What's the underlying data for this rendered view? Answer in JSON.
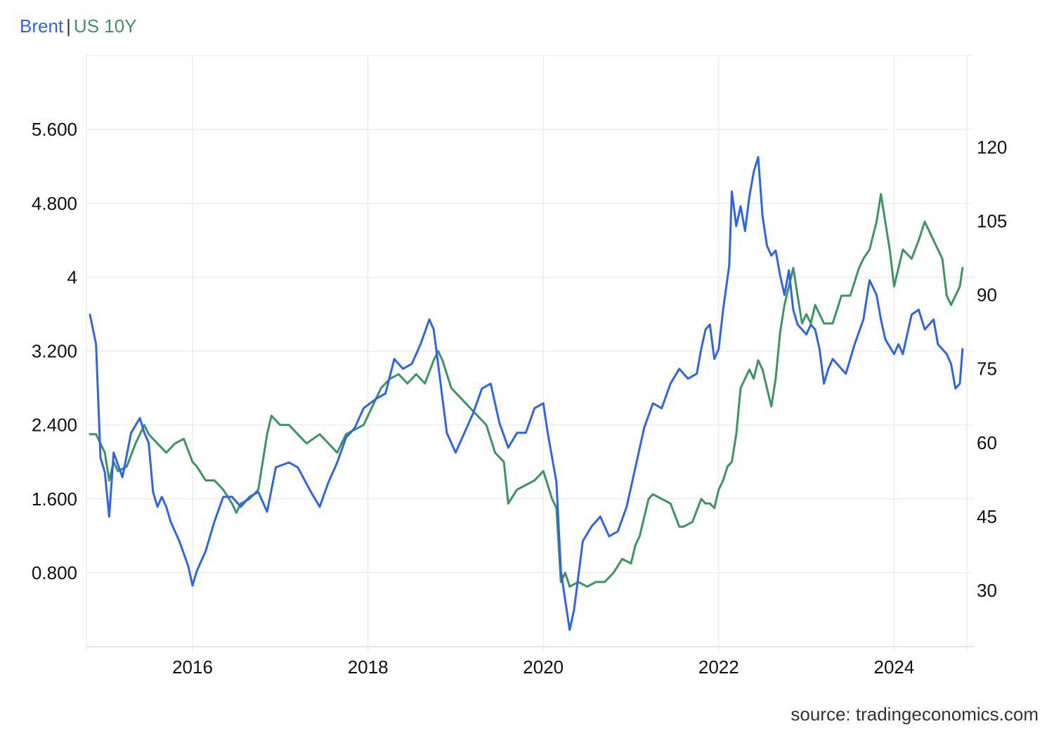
{
  "legend": {
    "series_a": "Brent",
    "separator": "|",
    "series_b": "US 10Y"
  },
  "source": "source: tradingeconomics.com",
  "colors": {
    "brent": "#2f63e8",
    "us10y": "#3d9460",
    "grid": "#e6e6e6"
  },
  "chart_data": {
    "type": "line",
    "grid": true,
    "legend_position": "top-left",
    "x_ticks": [
      "2016",
      "2018",
      "2020",
      "2022",
      "2024"
    ],
    "x_range": [
      2014.79,
      2024.83
    ],
    "left_axis": {
      "series": "US 10Y",
      "ticks": [
        "0.800",
        "1.600",
        "2.400",
        "3.200",
        "4",
        "4.800",
        "5.600"
      ],
      "range": [
        0.0,
        6.4
      ]
    },
    "right_axis": {
      "series": "Brent",
      "ticks": [
        "30",
        "45",
        "60",
        "75",
        "90",
        "105",
        "120"
      ],
      "range": [
        18.6,
        138.6
      ]
    },
    "series": [
      {
        "name": "Brent",
        "axis": "right",
        "color": "#2f63e8",
        "x": [
          2014.83,
          2014.9,
          2014.95,
          2015.0,
          2015.05,
          2015.1,
          2015.2,
          2015.3,
          2015.4,
          2015.45,
          2015.5,
          2015.55,
          2015.6,
          2015.65,
          2015.7,
          2015.75,
          2015.85,
          2015.95,
          2016.0,
          2016.05,
          2016.15,
          2016.25,
          2016.35,
          2016.45,
          2016.55,
          2016.65,
          2016.75,
          2016.85,
          2016.95,
          2017.1,
          2017.2,
          2017.35,
          2017.45,
          2017.55,
          2017.65,
          2017.75,
          2017.85,
          2017.95,
          2018.1,
          2018.2,
          2018.3,
          2018.4,
          2018.5,
          2018.55,
          2018.6,
          2018.7,
          2018.75,
          2018.8,
          2018.9,
          2018.95,
          2019.0,
          2019.1,
          2019.2,
          2019.3,
          2019.4,
          2019.5,
          2019.6,
          2019.7,
          2019.8,
          2019.9,
          2020.0,
          2020.05,
          2020.1,
          2020.15,
          2020.2,
          2020.25,
          2020.3,
          2020.35,
          2020.45,
          2020.55,
          2020.65,
          2020.75,
          2020.85,
          2020.95,
          2021.05,
          2021.15,
          2021.25,
          2021.35,
          2021.45,
          2021.55,
          2021.65,
          2021.75,
          2021.8,
          2021.85,
          2021.9,
          2021.95,
          2022.0,
          2022.05,
          2022.12,
          2022.15,
          2022.2,
          2022.25,
          2022.3,
          2022.35,
          2022.4,
          2022.45,
          2022.5,
          2022.55,
          2022.6,
          2022.65,
          2022.7,
          2022.75,
          2022.8,
          2022.85,
          2022.9,
          2023.0,
          2023.05,
          2023.1,
          2023.15,
          2023.2,
          2023.25,
          2023.3,
          2023.35,
          2023.4,
          2023.45,
          2023.55,
          2023.65,
          2023.72,
          2023.8,
          2023.85,
          2023.9,
          2024.0,
          2024.05,
          2024.1,
          2024.2,
          2024.28,
          2024.35,
          2024.45,
          2024.5,
          2024.55,
          2024.6,
          2024.65,
          2024.7,
          2024.75,
          2024.78
        ],
        "values": [
          86,
          80,
          57,
          54,
          45,
          58,
          53,
          62,
          65,
          62,
          60,
          50,
          47,
          49,
          47,
          44,
          40,
          35,
          31,
          34,
          38,
          44,
          49,
          49,
          47,
          49,
          50,
          46,
          55,
          56,
          55,
          50,
          47,
          52,
          56,
          61,
          63,
          67,
          69,
          70,
          77,
          75,
          76,
          78,
          80,
          85,
          83,
          76,
          62,
          60,
          58,
          62,
          66,
          71,
          72,
          64,
          59,
          62,
          62,
          67,
          68,
          62,
          57,
          52,
          34,
          28,
          22,
          26,
          40,
          43,
          45,
          41,
          42,
          47,
          55,
          63,
          68,
          67,
          72,
          75,
          73,
          74,
          79,
          83,
          84,
          77,
          79,
          87,
          96,
          111,
          104,
          108,
          103,
          110,
          115,
          118,
          106,
          100,
          98,
          99,
          94,
          90,
          95,
          87,
          84,
          82,
          84,
          83,
          79,
          72,
          75,
          77,
          76,
          75,
          74,
          80,
          85,
          93,
          90,
          85,
          81,
          78,
          80,
          78,
          86,
          87,
          83,
          85,
          80,
          79,
          78,
          76,
          71,
          72,
          79
        ]
      },
      {
        "name": "US 10Y",
        "axis": "left",
        "color": "#3d9460",
        "x": [
          2014.83,
          2014.9,
          2015.0,
          2015.05,
          2015.1,
          2015.15,
          2015.25,
          2015.35,
          2015.45,
          2015.5,
          2015.6,
          2015.7,
          2015.8,
          2015.9,
          2016.0,
          2016.05,
          2016.15,
          2016.25,
          2016.35,
          2016.45,
          2016.5,
          2016.55,
          2016.65,
          2016.75,
          2016.85,
          2016.9,
          2017.0,
          2017.1,
          2017.2,
          2017.3,
          2017.45,
          2017.55,
          2017.65,
          2017.75,
          2017.85,
          2017.95,
          2018.05,
          2018.15,
          2018.25,
          2018.35,
          2018.45,
          2018.55,
          2018.65,
          2018.75,
          2018.8,
          2018.85,
          2018.95,
          2019.05,
          2019.15,
          2019.25,
          2019.35,
          2019.45,
          2019.55,
          2019.6,
          2019.7,
          2019.8,
          2019.9,
          2020.0,
          2020.05,
          2020.1,
          2020.15,
          2020.2,
          2020.25,
          2020.3,
          2020.4,
          2020.5,
          2020.6,
          2020.7,
          2020.8,
          2020.9,
          2021.0,
          2021.05,
          2021.1,
          2021.15,
          2021.2,
          2021.25,
          2021.35,
          2021.45,
          2021.55,
          2021.6,
          2021.7,
          2021.8,
          2021.85,
          2021.9,
          2021.95,
          2022.0,
          2022.05,
          2022.1,
          2022.15,
          2022.2,
          2022.25,
          2022.3,
          2022.35,
          2022.4,
          2022.45,
          2022.5,
          2022.55,
          2022.6,
          2022.65,
          2022.7,
          2022.75,
          2022.8,
          2022.85,
          2022.9,
          2022.95,
          2023.0,
          2023.05,
          2023.1,
          2023.15,
          2023.2,
          2023.25,
          2023.3,
          2023.4,
          2023.5,
          2023.6,
          2023.65,
          2023.72,
          2023.8,
          2023.85,
          2023.9,
          2023.95,
          2024.0,
          2024.05,
          2024.1,
          2024.2,
          2024.28,
          2024.35,
          2024.4,
          2024.45,
          2024.5,
          2024.55,
          2024.6,
          2024.65,
          2024.7,
          2024.75,
          2024.78
        ],
        "values": [
          2.3,
          2.3,
          2.1,
          1.8,
          2.0,
          1.9,
          1.95,
          2.2,
          2.4,
          2.3,
          2.2,
          2.1,
          2.2,
          2.25,
          2.0,
          1.95,
          1.8,
          1.8,
          1.7,
          1.55,
          1.45,
          1.55,
          1.6,
          1.7,
          2.3,
          2.5,
          2.4,
          2.4,
          2.3,
          2.2,
          2.3,
          2.2,
          2.1,
          2.3,
          2.35,
          2.4,
          2.6,
          2.8,
          2.9,
          2.95,
          2.85,
          2.95,
          2.85,
          3.1,
          3.2,
          3.1,
          2.8,
          2.7,
          2.6,
          2.5,
          2.4,
          2.1,
          2.0,
          1.55,
          1.7,
          1.75,
          1.8,
          1.9,
          1.75,
          1.6,
          1.5,
          0.7,
          0.8,
          0.65,
          0.7,
          0.65,
          0.7,
          0.7,
          0.8,
          0.95,
          0.9,
          1.1,
          1.2,
          1.4,
          1.6,
          1.65,
          1.6,
          1.55,
          1.3,
          1.3,
          1.35,
          1.6,
          1.55,
          1.55,
          1.5,
          1.7,
          1.8,
          1.95,
          2.0,
          2.3,
          2.8,
          2.9,
          3.0,
          2.9,
          3.1,
          3.0,
          2.8,
          2.6,
          2.9,
          3.4,
          3.7,
          3.9,
          4.1,
          3.8,
          3.5,
          3.6,
          3.5,
          3.7,
          3.6,
          3.5,
          3.5,
          3.5,
          3.8,
          3.8,
          4.1,
          4.2,
          4.3,
          4.6,
          4.9,
          4.6,
          4.3,
          3.9,
          4.1,
          4.3,
          4.2,
          4.4,
          4.6,
          4.5,
          4.4,
          4.3,
          4.2,
          3.8,
          3.7,
          3.8,
          3.9,
          4.1
        ]
      }
    ]
  }
}
